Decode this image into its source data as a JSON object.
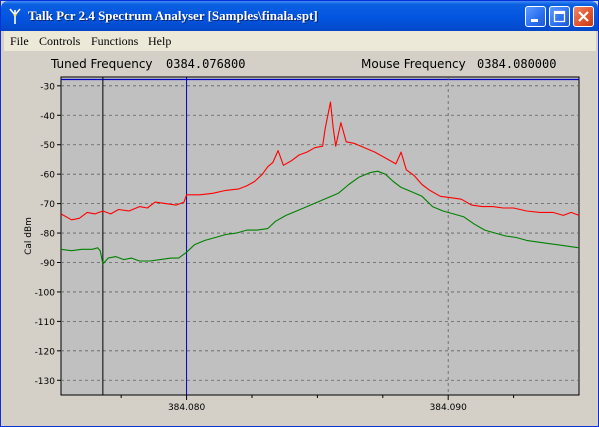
{
  "window": {
    "title": "Talk Pcr 2.4 Spectrum Analyser [Samples\\finala.spt]",
    "app_icon": "antenna-icon",
    "controls": [
      "minimize-icon",
      "maximize-icon",
      "close-icon"
    ]
  },
  "menu": {
    "items": [
      {
        "label": "File"
      },
      {
        "label": "Controls"
      },
      {
        "label": "Functions"
      },
      {
        "label": "Help"
      }
    ]
  },
  "status": {
    "tuned_label": "Tuned Frequency",
    "tuned_value": "0384.076800",
    "mouse_label": "Mouse Frequency",
    "mouse_value": "0384.080000"
  },
  "colors": {
    "trace_red": "#ff0000",
    "trace_green": "#008000",
    "tuned_marker": "#000000",
    "mouse_marker": "#0000c0",
    "plot_background": "#c0c0c0",
    "grid": "#606060"
  },
  "chart_data": {
    "type": "line",
    "ylabel": "Cal dBm",
    "xlabel": "",
    "ylim": [
      -135,
      -27
    ],
    "xlim": [
      384.0752,
      384.095
    ],
    "yticks": [
      -30,
      -40,
      -50,
      -60,
      -70,
      -80,
      -90,
      -100,
      -110,
      -120,
      -130
    ],
    "xticks": [
      384.08,
      384.09
    ],
    "xtick_labels": [
      "384.080",
      "384.090"
    ],
    "x_minor_ticks": [
      384.0775,
      384.0825,
      384.085,
      384.0875,
      384.0925
    ],
    "grid": true,
    "markers": [
      {
        "name": "tuned",
        "x": 384.0768
      },
      {
        "name": "mouse",
        "x": 384.08
      }
    ],
    "series": [
      {
        "color": "#ff0000",
        "points": [
          [
            384.0752,
            -73.5
          ],
          [
            384.0756,
            -75.5
          ],
          [
            384.0759,
            -75.0
          ],
          [
            384.0762,
            -73.0
          ],
          [
            384.0765,
            -73.5
          ],
          [
            384.0768,
            -72.5
          ],
          [
            384.0771,
            -73.5
          ],
          [
            384.0774,
            -72.0
          ],
          [
            384.0778,
            -72.5
          ],
          [
            384.0782,
            -71.0
          ],
          [
            384.0785,
            -71.5
          ],
          [
            384.0788,
            -69.5
          ],
          [
            384.0792,
            -70.0
          ],
          [
            384.0796,
            -70.5
          ],
          [
            384.0799,
            -69.5
          ],
          [
            384.08,
            -67.0
          ],
          [
            384.0805,
            -67.0
          ],
          [
            384.081,
            -66.5
          ],
          [
            384.0815,
            -65.5
          ],
          [
            384.082,
            -65.0
          ],
          [
            384.0823,
            -64.0
          ],
          [
            384.0826,
            -62.5
          ],
          [
            384.0829,
            -60.0
          ],
          [
            384.0831,
            -57.5
          ],
          [
            384.0833,
            -56.0
          ],
          [
            384.0835,
            -52.0
          ],
          [
            384.0837,
            -57.0
          ],
          [
            384.084,
            -55.5
          ],
          [
            384.0843,
            -53.5
          ],
          [
            384.0846,
            -52.5
          ],
          [
            384.0849,
            -51.0
          ],
          [
            384.0852,
            -50.5
          ],
          [
            384.0853,
            -44.5
          ],
          [
            384.0855,
            -35.5
          ],
          [
            384.0856,
            -44.0
          ],
          [
            384.0857,
            -50.5
          ],
          [
            384.0859,
            -42.5
          ],
          [
            384.0861,
            -49.0
          ],
          [
            384.0864,
            -49.5
          ],
          [
            384.0868,
            -51.0
          ],
          [
            384.0872,
            -52.5
          ],
          [
            384.0876,
            -54.5
          ],
          [
            384.088,
            -56.5
          ],
          [
            384.0882,
            -52.5
          ],
          [
            384.0884,
            -58.5
          ],
          [
            384.0887,
            -60.5
          ],
          [
            384.089,
            -63.5
          ],
          [
            384.0893,
            -65.5
          ],
          [
            384.0897,
            -67.5
          ],
          [
            384.0901,
            -68.0
          ],
          [
            384.0905,
            -68.5
          ],
          [
            384.0909,
            -70.5
          ],
          [
            384.0913,
            -71.0
          ],
          [
            384.0917,
            -71.0
          ],
          [
            384.0921,
            -71.5
          ],
          [
            384.0925,
            -71.5
          ],
          [
            384.093,
            -72.5
          ],
          [
            384.0935,
            -73.0
          ],
          [
            384.094,
            -73.0
          ],
          [
            384.0944,
            -74.0
          ],
          [
            384.0947,
            -73.0
          ],
          [
            384.095,
            -74.0
          ]
        ]
      },
      {
        "color": "#008000",
        "points": [
          [
            384.0752,
            -85.5
          ],
          [
            384.0756,
            -86.0
          ],
          [
            384.076,
            -85.5
          ],
          [
            384.0764,
            -85.5
          ],
          [
            384.0766,
            -85.0
          ],
          [
            384.0767,
            -86.0
          ],
          [
            384.0768,
            -90.5
          ],
          [
            384.077,
            -88.5
          ],
          [
            384.0773,
            -88.0
          ],
          [
            384.0776,
            -89.0
          ],
          [
            384.0779,
            -88.5
          ],
          [
            384.0782,
            -89.5
          ],
          [
            384.0786,
            -89.5
          ],
          [
            384.079,
            -89.0
          ],
          [
            384.0794,
            -88.5
          ],
          [
            384.0797,
            -88.5
          ],
          [
            384.08,
            -86.5
          ],
          [
            384.0803,
            -84.0
          ],
          [
            384.0807,
            -82.5
          ],
          [
            384.0811,
            -81.5
          ],
          [
            384.0815,
            -80.5
          ],
          [
            384.0819,
            -80.0
          ],
          [
            384.0823,
            -79.0
          ],
          [
            384.0827,
            -79.0
          ],
          [
            384.0831,
            -78.5
          ],
          [
            384.0834,
            -76.0
          ],
          [
            384.0838,
            -74.0
          ],
          [
            384.0842,
            -72.5
          ],
          [
            384.0846,
            -71.0
          ],
          [
            384.085,
            -69.5
          ],
          [
            384.0854,
            -68.0
          ],
          [
            384.0858,
            -66.5
          ],
          [
            384.0862,
            -63.5
          ],
          [
            384.0866,
            -61.0
          ],
          [
            384.087,
            -59.5
          ],
          [
            384.0873,
            -59.0
          ],
          [
            384.0876,
            -60.0
          ],
          [
            384.0879,
            -62.5
          ],
          [
            384.0882,
            -64.5
          ],
          [
            384.0886,
            -66.0
          ],
          [
            384.089,
            -67.5
          ],
          [
            384.0894,
            -71.0
          ],
          [
            384.0898,
            -72.5
          ],
          [
            384.0902,
            -73.5
          ],
          [
            384.0906,
            -74.5
          ],
          [
            384.091,
            -77.0
          ],
          [
            384.0914,
            -79.0
          ],
          [
            384.0918,
            -80.0
          ],
          [
            384.0922,
            -81.0
          ],
          [
            384.0926,
            -81.5
          ],
          [
            384.093,
            -82.5
          ],
          [
            384.0934,
            -83.0
          ],
          [
            384.0938,
            -83.5
          ],
          [
            384.0942,
            -84.0
          ],
          [
            384.0946,
            -84.5
          ],
          [
            384.095,
            -85.0
          ]
        ]
      }
    ]
  }
}
